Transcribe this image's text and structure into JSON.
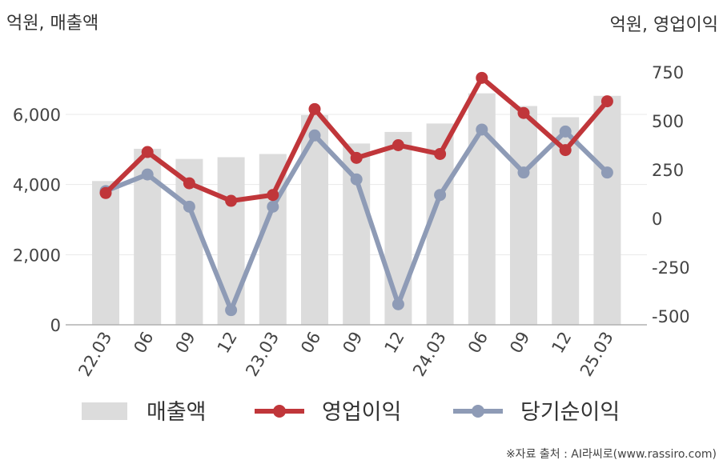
{
  "chart_data": {
    "type": "bar+line",
    "left_axis_unit": "억원, 매출액",
    "right_axis_unit": "억원, 영업이익",
    "categories": [
      "22.03",
      "06",
      "09",
      "12",
      "23.03",
      "06",
      "09",
      "12",
      "24.03",
      "06",
      "09",
      "12",
      "25.03"
    ],
    "left_ylim": [
      0,
      7000
    ],
    "left_ticks": [
      "0",
      "2,000",
      "4,000",
      "6,000"
    ],
    "right_ylim": [
      -500,
      750
    ],
    "right_ticks": [
      "-500",
      "-250",
      "0",
      "250",
      "500",
      "750"
    ],
    "series": [
      {
        "name": "매출액",
        "type": "bar",
        "axis": "left",
        "values": [
          4100,
          5020,
          4730,
          4780,
          4870,
          5980,
          5170,
          5500,
          5740,
          6600,
          6240,
          5920,
          6530
        ]
      },
      {
        "name": "영업이익",
        "type": "line",
        "axis": "right",
        "values": [
          130,
          340,
          180,
          90,
          120,
          560,
          310,
          375,
          330,
          720,
          540,
          350,
          600
        ]
      },
      {
        "name": "당기순이익",
        "type": "line",
        "axis": "right",
        "values": [
          140,
          225,
          60,
          -470,
          60,
          425,
          200,
          -440,
          120,
          455,
          235,
          445,
          235
        ]
      }
    ],
    "colors": {
      "bar": "#dcdcdc",
      "operating_profit": "#c0363a",
      "net_income": "#8e9bb6",
      "grid": "#e8e8e8",
      "axis": "#b0b0b0"
    },
    "grid": true,
    "legend_position": "bottom"
  },
  "legend": [
    {
      "label": "매출액"
    },
    {
      "label": "영업이익"
    },
    {
      "label": "당기순이익"
    }
  ],
  "source": "※자료 출처 : AI라씨로(www.rassiro.com)"
}
